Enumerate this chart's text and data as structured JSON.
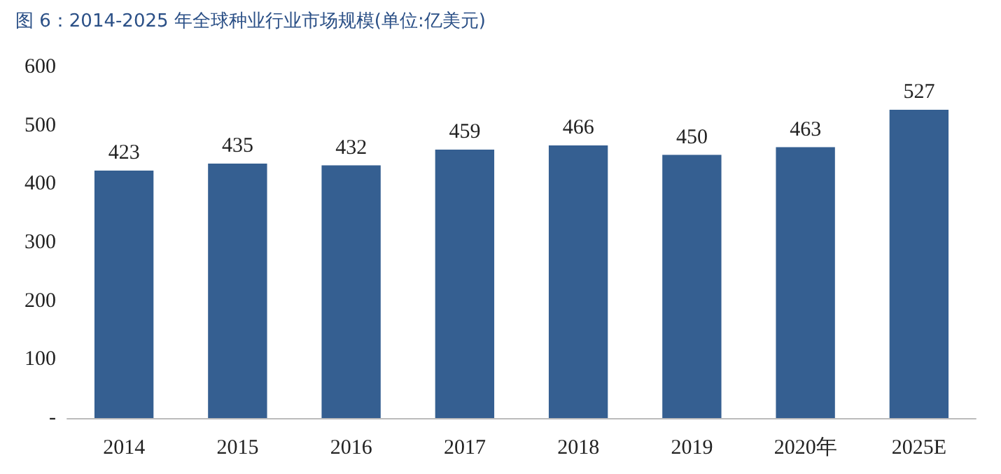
{
  "chart_data": {
    "type": "bar",
    "title": "图 6：2014-2025 年全球种业行业市场规模(单位:亿美元)",
    "categories": [
      "2014",
      "2015",
      "2016",
      "2017",
      "2018",
      "2019",
      "2020年",
      "2025E"
    ],
    "values": [
      423,
      435,
      432,
      459,
      466,
      450,
      463,
      527
    ],
    "color": "#355f91",
    "ylim": [
      0,
      600
    ],
    "yticks": [
      {
        "value": 0,
        "label": "-"
      },
      100,
      200,
      300,
      400,
      500,
      600
    ],
    "grid": false,
    "data_labels": true
  }
}
